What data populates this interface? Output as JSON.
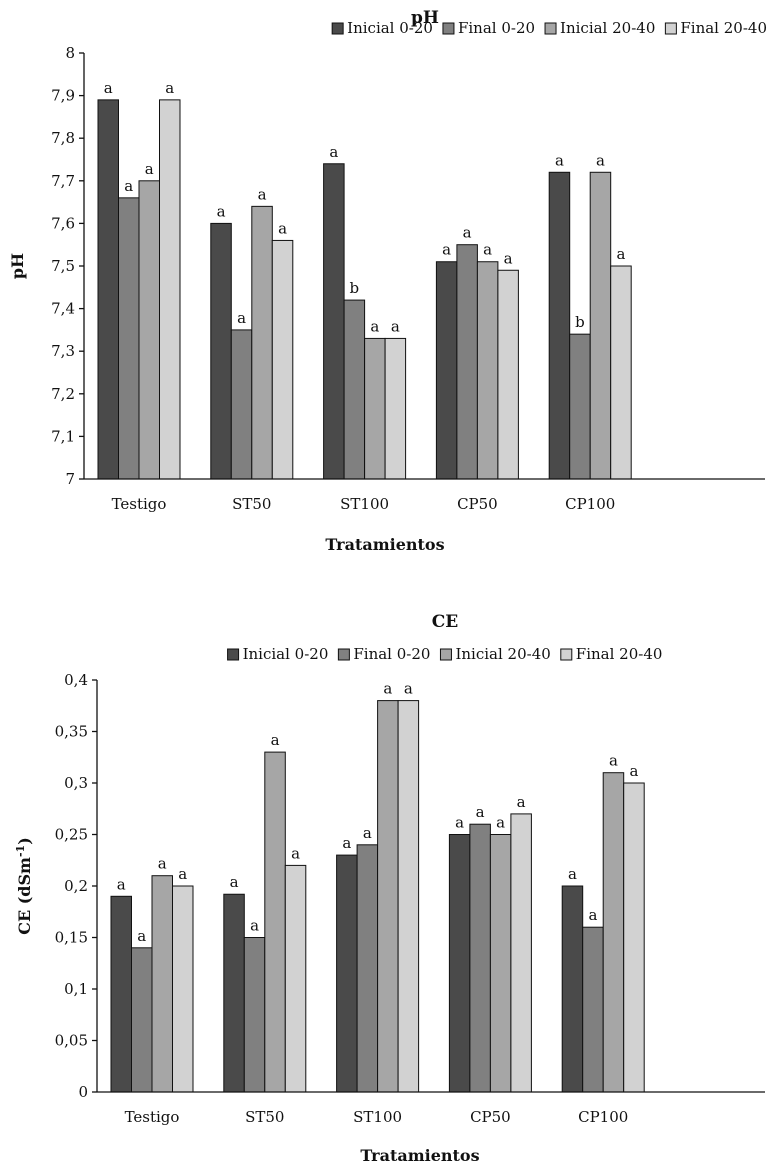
{
  "colors": [
    "#4a4a4a",
    "#808080",
    "#a6a6a6",
    "#d2d2d2"
  ],
  "chart_data": [
    {
      "type": "bar",
      "title": "pH",
      "xlabel": "Tratamientos",
      "ylabel": "pH",
      "ylim": [
        7,
        8
      ],
      "ytick_step": 0.1,
      "ytick_labels": [
        "7",
        "7,1",
        "7,2",
        "7,3",
        "7,4",
        "7,5",
        "7,6",
        "7,7",
        "7,8",
        "7,9",
        "8"
      ],
      "categories": [
        "Testigo",
        "ST50",
        "ST100",
        "CP50",
        "CP100"
      ],
      "legend_position": "top-right",
      "grid": false,
      "series": [
        {
          "name": "Inicial 0-20",
          "values": [
            7.89,
            7.6,
            7.74,
            7.51,
            7.72
          ],
          "letters": [
            "a",
            "a",
            "a",
            "a",
            "a"
          ]
        },
        {
          "name": "Final 0-20",
          "values": [
            7.66,
            7.35,
            7.42,
            7.55,
            7.34
          ],
          "letters": [
            "a",
            "a",
            "b",
            "a",
            "b"
          ]
        },
        {
          "name": "Inicial 20-40",
          "values": [
            7.7,
            7.64,
            7.33,
            7.51,
            7.72
          ],
          "letters": [
            "a",
            "a",
            "a",
            "a",
            "a"
          ]
        },
        {
          "name": "Final 20-40",
          "values": [
            7.89,
            7.56,
            7.33,
            7.49,
            7.5
          ],
          "letters": [
            "a",
            "a",
            "a",
            "a",
            "a"
          ]
        }
      ]
    },
    {
      "type": "bar",
      "title": "CE",
      "xlabel": "Tratamientos",
      "ylabel": "CE (dSm",
      "ylabel_sup": "-1",
      "ylabel_end": ")",
      "ylim": [
        0,
        0.4
      ],
      "ytick_step": 0.05,
      "ytick_labels": [
        "0",
        "0,05",
        "0,1",
        "0,15",
        "0,2",
        "0,25",
        "0,3",
        "0,35",
        "0,4"
      ],
      "categories": [
        "Testigo",
        "ST50",
        "ST100",
        "CP50",
        "CP100"
      ],
      "legend_position": "top",
      "grid": false,
      "series": [
        {
          "name": "Inicial 0-20",
          "values": [
            0.19,
            0.192,
            0.23,
            0.25,
            0.2
          ],
          "letters": [
            "a",
            "a",
            "a",
            "a",
            "a"
          ]
        },
        {
          "name": "Final 0-20",
          "values": [
            0.14,
            0.15,
            0.24,
            0.26,
            0.16
          ],
          "letters": [
            "a",
            "a",
            "a",
            "a",
            "a"
          ]
        },
        {
          "name": "Inicial 20-40",
          "values": [
            0.21,
            0.33,
            0.38,
            0.25,
            0.31
          ],
          "letters": [
            "a",
            "a",
            "a",
            "a",
            "a"
          ]
        },
        {
          "name": "Final 20-40",
          "values": [
            0.2,
            0.22,
            0.38,
            0.27,
            0.3
          ],
          "letters": [
            "a",
            "a",
            "a",
            "a",
            "a"
          ]
        }
      ]
    }
  ]
}
